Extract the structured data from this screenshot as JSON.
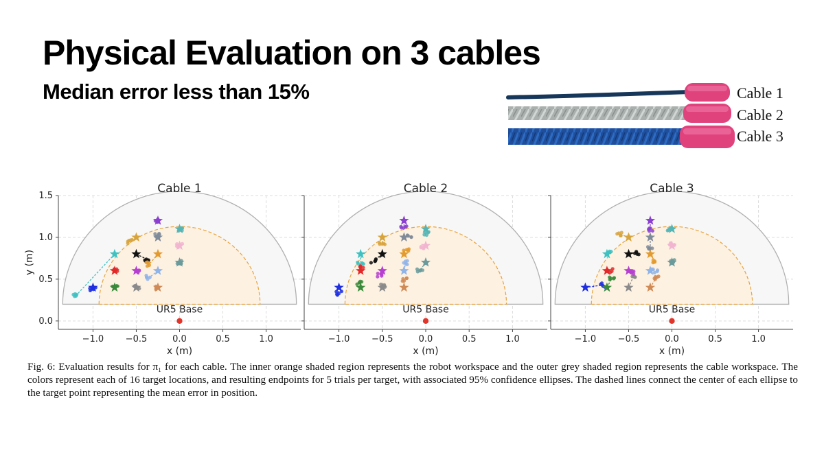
{
  "slide": {
    "title": "Physical Evaluation on 3 cables",
    "subtitle": "Median error less than 15%"
  },
  "photo": {
    "labels": [
      "Cable 1",
      "Cable 2",
      "Cable 3"
    ],
    "colors": {
      "cable1": "#16365a",
      "cable2": "#a9b0ae",
      "cable3": "#1f4f9c",
      "tip": "#e0427c"
    }
  },
  "caption": "Fig. 6: Evaluation results for π₁ for each cable. The inner orange shaded region represents the robot workspace and the outer grey shaded region represents the cable workspace. The colors represent each of 16 target locations, and resulting endpoints for 5 trials per target, with associated 95% confidence ellipses. The dashed lines connect the center of each ellipse to the target point representing the mean error in position.",
  "chart_data": [
    {
      "type": "scatter",
      "title": "Cable 1",
      "xlabel": "x (m)",
      "ylabel": "y (m)",
      "xlim": [
        -1.4,
        1.4
      ],
      "ylim": [
        -0.1,
        1.5
      ],
      "xticks": [
        "−1.0",
        "−0.5",
        "0.0",
        "0.5",
        "1.0"
      ],
      "yticks": [
        "0.0",
        "0.5",
        "1.0",
        "1.5"
      ],
      "grid": true,
      "cable_workspace_radius": 1.35,
      "robot_workspace_radius": 0.93,
      "base_label": "UR5 Base",
      "base": [
        0.0,
        0.0
      ],
      "targets": [
        {
          "x": -1.0,
          "y": 0.4,
          "mx": -1.0,
          "my": 0.38,
          "color": "#1f2ee0"
        },
        {
          "x": -0.75,
          "y": 0.4,
          "mx": -0.75,
          "my": 0.4,
          "color": "#3b8a3b"
        },
        {
          "x": -0.75,
          "y": 0.6,
          "mx": -0.75,
          "my": 0.6,
          "color": "#e02a2a"
        },
        {
          "x": -0.75,
          "y": 0.8,
          "mx": -1.2,
          "my": 0.3,
          "color": "#3fc1c1"
        },
        {
          "x": -0.5,
          "y": 0.4,
          "mx": -0.5,
          "my": 0.4,
          "color": "#8a8a8a"
        },
        {
          "x": -0.5,
          "y": 0.6,
          "mx": -0.5,
          "my": 0.6,
          "color": "#b53fcf"
        },
        {
          "x": -0.5,
          "y": 0.8,
          "mx": -0.38,
          "my": 0.74,
          "color": "#111111"
        },
        {
          "x": -0.5,
          "y": 1.0,
          "mx": -0.57,
          "my": 0.95,
          "color": "#d7a33c"
        },
        {
          "x": -0.25,
          "y": 0.4,
          "mx": -0.25,
          "my": 0.4,
          "color": "#d08a55"
        },
        {
          "x": -0.25,
          "y": 0.6,
          "mx": -0.35,
          "my": 0.52,
          "color": "#8fb4e8"
        },
        {
          "x": -0.25,
          "y": 0.8,
          "mx": -0.35,
          "my": 0.68,
          "color": "#e39b2f"
        },
        {
          "x": -0.25,
          "y": 1.0,
          "mx": -0.25,
          "my": 1.03,
          "color": "#7f8b99"
        },
        {
          "x": -0.25,
          "y": 1.2,
          "mx": -0.25,
          "my": 1.2,
          "color": "#8a3fd0"
        },
        {
          "x": 0.0,
          "y": 0.7,
          "mx": 0.0,
          "my": 0.7,
          "color": "#6a9a9a"
        },
        {
          "x": 0.0,
          "y": 0.9,
          "mx": 0.0,
          "my": 0.9,
          "color": "#f2b5d0"
        },
        {
          "x": 0.0,
          "y": 1.1,
          "mx": 0.0,
          "my": 1.1,
          "color": "#55b5b5"
        }
      ]
    },
    {
      "type": "scatter",
      "title": "Cable 2",
      "xlabel": "x (m)",
      "ylabel": "",
      "xlim": [
        -1.4,
        1.4
      ],
      "ylim": [
        -0.1,
        1.5
      ],
      "xticks": [
        "−1.0",
        "−0.5",
        "0.0",
        "0.5",
        "1.0"
      ],
      "yticks": [],
      "grid": true,
      "cable_workspace_radius": 1.35,
      "robot_workspace_radius": 0.93,
      "base_label": "UR5 Base",
      "base": [
        0.0,
        0.0
      ],
      "targets": [
        {
          "x": -1.0,
          "y": 0.4,
          "mx": -1.0,
          "my": 0.33,
          "color": "#1f2ee0"
        },
        {
          "x": -0.75,
          "y": 0.4,
          "mx": -0.77,
          "my": 0.46,
          "color": "#3b8a3b"
        },
        {
          "x": -0.75,
          "y": 0.6,
          "mx": -0.75,
          "my": 0.65,
          "color": "#e02a2a"
        },
        {
          "x": -0.75,
          "y": 0.8,
          "mx": -0.75,
          "my": 0.7,
          "color": "#3fc1c1"
        },
        {
          "x": -0.5,
          "y": 0.4,
          "mx": -0.5,
          "my": 0.43,
          "color": "#8a8a8a"
        },
        {
          "x": -0.5,
          "y": 0.6,
          "mx": -0.53,
          "my": 0.55,
          "color": "#b53fcf"
        },
        {
          "x": -0.5,
          "y": 0.8,
          "mx": -0.6,
          "my": 0.72,
          "color": "#111111"
        },
        {
          "x": -0.5,
          "y": 1.0,
          "mx": -0.5,
          "my": 0.92,
          "color": "#d7a33c"
        },
        {
          "x": -0.25,
          "y": 0.4,
          "mx": -0.25,
          "my": 0.5,
          "color": "#d08a55"
        },
        {
          "x": -0.25,
          "y": 0.6,
          "mx": -0.23,
          "my": 0.7,
          "color": "#8fb4e8"
        },
        {
          "x": -0.25,
          "y": 0.8,
          "mx": -0.22,
          "my": 0.85,
          "color": "#e39b2f"
        },
        {
          "x": -0.25,
          "y": 1.0,
          "mx": -0.2,
          "my": 1.02,
          "color": "#7f8b99"
        },
        {
          "x": -0.25,
          "y": 1.2,
          "mx": -0.25,
          "my": 1.12,
          "color": "#8a3fd0"
        },
        {
          "x": 0.0,
          "y": 0.7,
          "mx": -0.07,
          "my": 0.6,
          "color": "#6a9a9a"
        },
        {
          "x": 0.0,
          "y": 0.9,
          "mx": -0.03,
          "my": 0.88,
          "color": "#f2b5d0"
        },
        {
          "x": 0.0,
          "y": 1.1,
          "mx": 0.0,
          "my": 1.05,
          "color": "#55b5b5"
        }
      ]
    },
    {
      "type": "scatter",
      "title": "Cable 3",
      "xlabel": "x (m)",
      "ylabel": "",
      "xlim": [
        -1.4,
        1.4
      ],
      "ylim": [
        -0.1,
        1.5
      ],
      "xticks": [
        "−1.0",
        "−0.5",
        "0.0",
        "0.5",
        "1.0"
      ],
      "yticks": [],
      "grid": true,
      "cable_workspace_radius": 1.35,
      "robot_workspace_radius": 0.93,
      "base_label": "UR5 Base",
      "base": [
        0.0,
        0.0
      ],
      "targets": [
        {
          "x": -1.0,
          "y": 0.4,
          "mx": -0.8,
          "my": 0.43,
          "color": "#1f2ee0"
        },
        {
          "x": -0.75,
          "y": 0.4,
          "mx": -0.7,
          "my": 0.5,
          "color": "#3b8a3b"
        },
        {
          "x": -0.75,
          "y": 0.6,
          "mx": -0.72,
          "my": 0.6,
          "color": "#e02a2a"
        },
        {
          "x": -0.75,
          "y": 0.8,
          "mx": -0.72,
          "my": 0.82,
          "color": "#3fc1c1"
        },
        {
          "x": -0.5,
          "y": 0.4,
          "mx": -0.45,
          "my": 0.52,
          "color": "#8a8a8a"
        },
        {
          "x": -0.5,
          "y": 0.6,
          "mx": -0.45,
          "my": 0.58,
          "color": "#b53fcf"
        },
        {
          "x": -0.5,
          "y": 0.8,
          "mx": -0.4,
          "my": 0.82,
          "color": "#111111"
        },
        {
          "x": -0.5,
          "y": 1.0,
          "mx": -0.6,
          "my": 1.04,
          "color": "#d7a33c"
        },
        {
          "x": -0.25,
          "y": 0.4,
          "mx": -0.18,
          "my": 0.52,
          "color": "#d08a55"
        },
        {
          "x": -0.25,
          "y": 0.6,
          "mx": -0.2,
          "my": 0.6,
          "color": "#8fb4e8"
        },
        {
          "x": -0.25,
          "y": 0.8,
          "mx": -0.2,
          "my": 0.72,
          "color": "#e39b2f"
        },
        {
          "x": -0.25,
          "y": 1.0,
          "mx": -0.25,
          "my": 0.88,
          "color": "#7f8b99"
        },
        {
          "x": -0.25,
          "y": 1.2,
          "mx": -0.25,
          "my": 1.1,
          "color": "#8a3fd0"
        },
        {
          "x": 0.0,
          "y": 0.7,
          "mx": 0.0,
          "my": 0.72,
          "color": "#6a9a9a"
        },
        {
          "x": 0.0,
          "y": 0.9,
          "mx": 0.0,
          "my": 0.92,
          "color": "#f2b5d0"
        },
        {
          "x": 0.0,
          "y": 1.1,
          "mx": -0.03,
          "my": 1.1,
          "color": "#55b5b5"
        }
      ]
    }
  ]
}
